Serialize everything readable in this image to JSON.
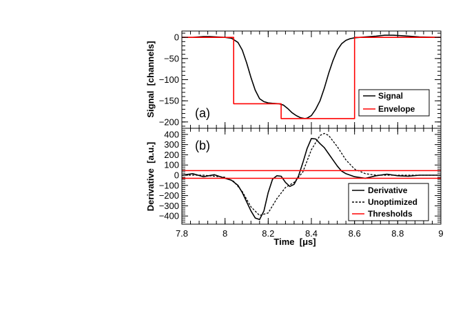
{
  "chart_data": [
    {
      "panel": "(a)",
      "type": "line",
      "xlabel": "",
      "ylabel": "Signal  [channels]",
      "xlim": [
        7.8,
        9.0
      ],
      "ylim": [
        -215,
        15
      ],
      "yticks": [
        0,
        -50,
        -100,
        -150,
        -200
      ],
      "ytick_labels": [
        "0",
        "−50",
        "−100",
        "−150",
        "−200"
      ],
      "legend": {
        "placement": "bottom-right",
        "entries": [
          "Signal",
          "Envelope"
        ]
      },
      "series": [
        {
          "name": "Signal",
          "color": "#000000",
          "style": "solid",
          "x": [
            7.8,
            7.85,
            7.9,
            7.93,
            7.96,
            8.0,
            8.03,
            8.06,
            8.08,
            8.1,
            8.12,
            8.14,
            8.16,
            8.18,
            8.2,
            8.22,
            8.25,
            8.27,
            8.29,
            8.31,
            8.33,
            8.35,
            8.37,
            8.38,
            8.4,
            8.42,
            8.44,
            8.46,
            8.48,
            8.5,
            8.52,
            8.54,
            8.56,
            8.58,
            8.6,
            8.65,
            8.7,
            8.74,
            8.78,
            8.85,
            8.9,
            9.0
          ],
          "y": [
            0,
            0,
            2,
            2,
            1,
            0,
            -2,
            -12,
            -30,
            -60,
            -95,
            -125,
            -145,
            -152,
            -155,
            -156,
            -157,
            -160,
            -168,
            -178,
            -185,
            -190,
            -192,
            -191,
            -185,
            -170,
            -150,
            -120,
            -85,
            -55,
            -30,
            -15,
            -7,
            -3,
            -1,
            1,
            3,
            5,
            5,
            3,
            1,
            0
          ]
        },
        {
          "name": "Envelope",
          "color": "#ff0000",
          "style": "solid",
          "x": [
            7.8,
            8.04,
            8.04,
            8.26,
            8.26,
            8.6,
            8.6,
            9.0
          ],
          "y": [
            0,
            0,
            -157,
            -157,
            -192,
            -192,
            0,
            0
          ]
        }
      ]
    },
    {
      "panel": "(b)",
      "type": "line",
      "xlabel": "Time  [μs]",
      "ylabel": "Derivative  [a.u.]",
      "xlim": [
        7.8,
        9.0
      ],
      "ylim": [
        -480,
        460
      ],
      "xticks": [
        7.8,
        8.0,
        8.2,
        8.4,
        8.6,
        8.8,
        9.0
      ],
      "xtick_labels": [
        "7.8",
        "8",
        "8.2",
        "8.4",
        "8.6",
        "8.8",
        "9"
      ],
      "yticks": [
        400,
        300,
        200,
        100,
        0,
        -100,
        -200,
        -300,
        -400
      ],
      "ytick_labels": [
        "400",
        "300",
        "200",
        "100",
        "0",
        "−100",
        "−200",
        "−300",
        "−400"
      ],
      "legend": {
        "placement": "bottom-right",
        "entries": [
          "Derivative",
          "Unoptimized",
          "Thresholds"
        ]
      },
      "series": [
        {
          "name": "Derivative",
          "color": "#000000",
          "style": "solid",
          "x": [
            7.8,
            7.85,
            7.9,
            7.95,
            8.0,
            8.03,
            8.06,
            8.08,
            8.1,
            8.12,
            8.14,
            8.16,
            8.18,
            8.2,
            8.22,
            8.24,
            8.26,
            8.28,
            8.3,
            8.32,
            8.34,
            8.36,
            8.38,
            8.4,
            8.42,
            8.44,
            8.46,
            8.48,
            8.5,
            8.52,
            8.54,
            8.56,
            8.6,
            8.65,
            8.7,
            8.75,
            8.8,
            8.85,
            8.9,
            9.0
          ],
          "y": [
            0,
            15,
            -15,
            5,
            -30,
            -50,
            -100,
            -170,
            -260,
            -350,
            -420,
            -435,
            -350,
            -170,
            -40,
            -5,
            -10,
            -70,
            -110,
            -90,
            -10,
            120,
            260,
            360,
            355,
            310,
            270,
            210,
            150,
            90,
            40,
            15,
            -15,
            -30,
            -5,
            10,
            -5,
            -10,
            0,
            0
          ]
        },
        {
          "name": "Unoptimized",
          "color": "#000000",
          "style": "dashed",
          "x": [
            7.8,
            7.9,
            8.0,
            8.04,
            8.08,
            8.12,
            8.16,
            8.2,
            8.24,
            8.28,
            8.32,
            8.36,
            8.4,
            8.44,
            8.46,
            8.48,
            8.52,
            8.56,
            8.6,
            8.65,
            8.7,
            8.8,
            9.0
          ],
          "y": [
            0,
            0,
            -20,
            -60,
            -160,
            -310,
            -395,
            -370,
            -230,
            -120,
            -70,
            30,
            250,
            390,
            410,
            390,
            280,
            150,
            60,
            15,
            0,
            0,
            0
          ]
        },
        {
          "name": "Thresholds",
          "color": "#ff0000",
          "style": "solid",
          "hlines": [
            45,
            -30
          ]
        }
      ]
    }
  ]
}
